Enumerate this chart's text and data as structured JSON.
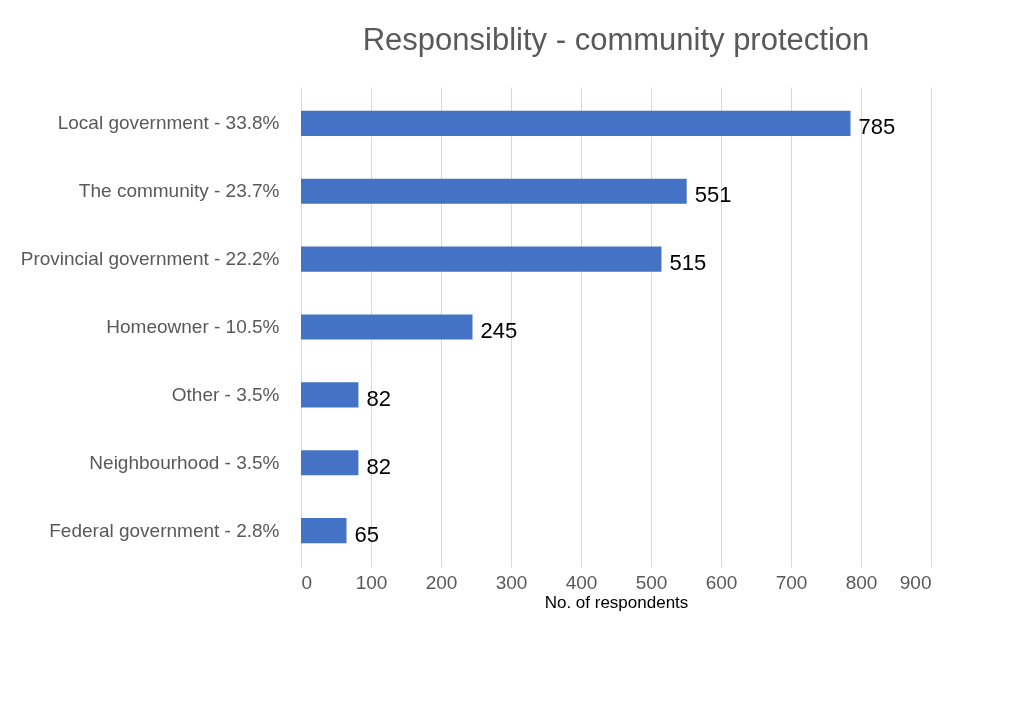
{
  "chart_data": {
    "type": "bar",
    "orientation": "horizontal",
    "title": "Responsiblity - community protection",
    "xlabel": "No. of respondents",
    "categories": [
      "Local government  - 33.8%",
      "The community - 23.7%",
      "Provincial government - 22.2%",
      "Homeowner - 10.5%",
      "Other - 3.5%",
      "Neighbourhood - 3.5%",
      "Federal government - 2.8%"
    ],
    "values": [
      785,
      551,
      515,
      245,
      82,
      82,
      65
    ],
    "color": "#4472c4",
    "xlim": [
      0,
      900
    ],
    "xticks": [
      0,
      100,
      200,
      300,
      400,
      500,
      600,
      700,
      800,
      900
    ],
    "grid": "x",
    "data_labels": true
  }
}
